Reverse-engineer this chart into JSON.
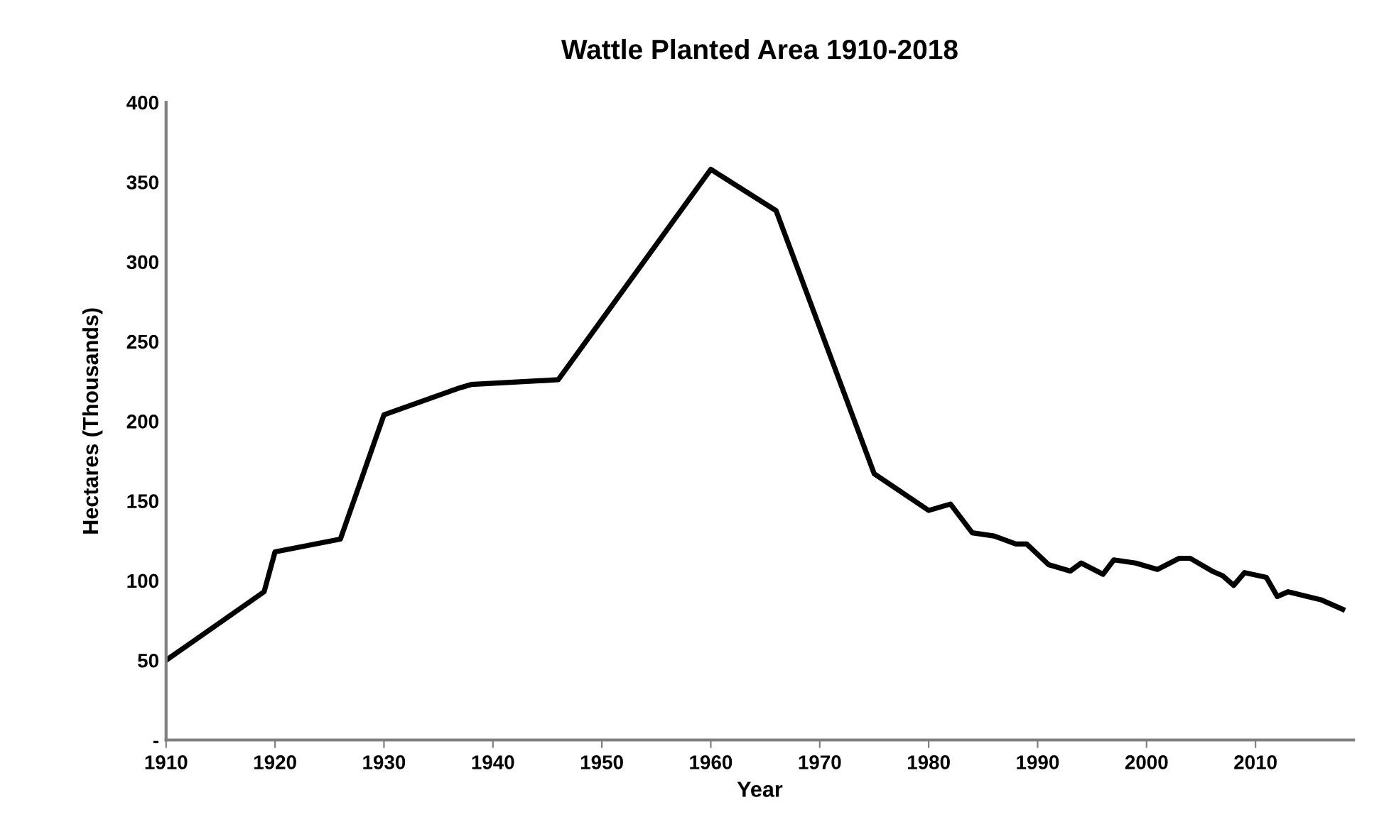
{
  "chart_data": {
    "type": "line",
    "title": "Wattle Planted Area 1910-2018",
    "xlabel": "Year",
    "ylabel": "Hectares (Thousands)",
    "series": [
      {
        "color": "#000000",
        "x": [
          1910,
          1919,
          1920,
          1926,
          1930,
          1937,
          1938,
          1946,
          1960,
          1966,
          1975,
          1980,
          1982,
          1984,
          1986,
          1988,
          1989,
          1991,
          1993,
          1994,
          1996,
          1997,
          1999,
          2001,
          2003,
          2004,
          2006,
          2007,
          2008,
          2009,
          2011,
          2012,
          2013,
          2016,
          2018
        ],
        "values": [
          50,
          93,
          118,
          126,
          204,
          221,
          223,
          226,
          358,
          332,
          167,
          144,
          148,
          130,
          128,
          123,
          123,
          110,
          106,
          111,
          104,
          113,
          111,
          107,
          114,
          114,
          106,
          103,
          97,
          105,
          102,
          90,
          93,
          88,
          82
        ]
      }
    ],
    "xlim": [
      1910,
      2019
    ],
    "xticks": [
      1910,
      1920,
      1930,
      1940,
      1950,
      1960,
      1970,
      1980,
      1990,
      2000,
      2010
    ],
    "ylim": [
      0,
      400
    ],
    "yticks": [
      {
        "value": 0,
        "label": "-"
      },
      50,
      100,
      150,
      200,
      250,
      300,
      350,
      400
    ],
    "grid": false,
    "marker": "none",
    "line_style": "solid"
  }
}
